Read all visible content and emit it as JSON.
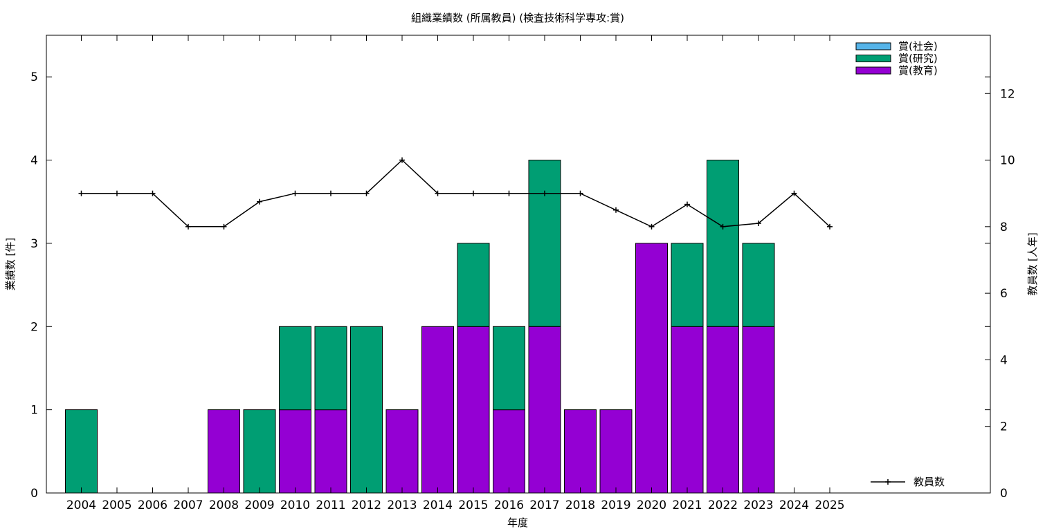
{
  "chart_data": {
    "type": "bar",
    "stacked": true,
    "title": "組織業績数 (所属教員) (検査技術科学専攻:賞)",
    "xlabel": "年度",
    "ylabel": "業績数 [件]",
    "y2label": "教員数 [人年]",
    "ylim": [
      0,
      5.5
    ],
    "y2lim": [
      0,
      13.75
    ],
    "yticks": [
      0,
      1,
      2,
      3,
      4,
      5
    ],
    "y2ticks": [
      0,
      2,
      4,
      6,
      8,
      10,
      12
    ],
    "grid": false,
    "legend_position": "top-right",
    "categories": [
      "2004",
      "2005",
      "2006",
      "2007",
      "2008",
      "2009",
      "2010",
      "2011",
      "2012",
      "2013",
      "2014",
      "2015",
      "2016",
      "2017",
      "2018",
      "2019",
      "2020",
      "2021",
      "2022",
      "2023",
      "2024",
      "2025"
    ],
    "series": [
      {
        "name": "賞(教育)",
        "color": "#9400d3",
        "values": [
          0,
          0,
          0,
          0,
          1,
          0,
          1,
          1,
          0,
          1,
          2,
          2,
          1,
          2,
          1,
          1,
          3,
          2,
          2,
          2,
          0,
          0
        ]
      },
      {
        "name": "賞(研究)",
        "color": "#009e73",
        "values": [
          1,
          0,
          0,
          0,
          0,
          1,
          1,
          1,
          2,
          0,
          0,
          1,
          1,
          2,
          0,
          0,
          0,
          1,
          2,
          1,
          0,
          0
        ]
      },
      {
        "name": "賞(社会)",
        "color": "#56b4e9",
        "values": [
          0,
          0,
          0,
          0,
          0,
          0,
          0,
          0,
          0,
          0,
          0,
          0,
          0,
          0,
          0,
          0,
          0,
          0,
          0,
          0,
          0,
          0
        ]
      }
    ],
    "line_series": {
      "name": "教員数",
      "color": "#000000",
      "axis": "y2",
      "values": [
        9,
        9,
        9,
        8,
        8,
        8.75,
        9,
        9,
        9,
        10,
        9,
        9,
        9,
        9,
        9,
        8.5,
        8,
        8.67,
        8,
        8.1,
        9,
        8
      ]
    }
  }
}
